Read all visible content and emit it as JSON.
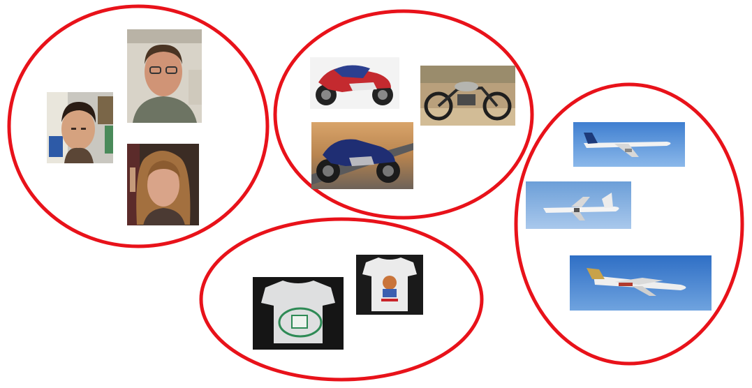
{
  "colors": {
    "ring": "#e8121a",
    "background": "#ffffff"
  },
  "clusters": [
    {
      "category": "faces",
      "images": [
        "face-man-dark-hair",
        "face-man-glasses",
        "face-woman"
      ]
    },
    {
      "category": "motorcycles",
      "images": [
        "motorcycle-sport-red",
        "motorcycle-vintage",
        "motorcycle-touring-blue"
      ]
    },
    {
      "category": "t-shirts",
      "images": [
        "t-shirt-printed-logo",
        "t-shirt-cartoon"
      ]
    },
    {
      "category": "airplanes",
      "images": [
        "airplane-jet-wide",
        "airplane-turboprop",
        "airplane-regional-jet"
      ]
    }
  ]
}
